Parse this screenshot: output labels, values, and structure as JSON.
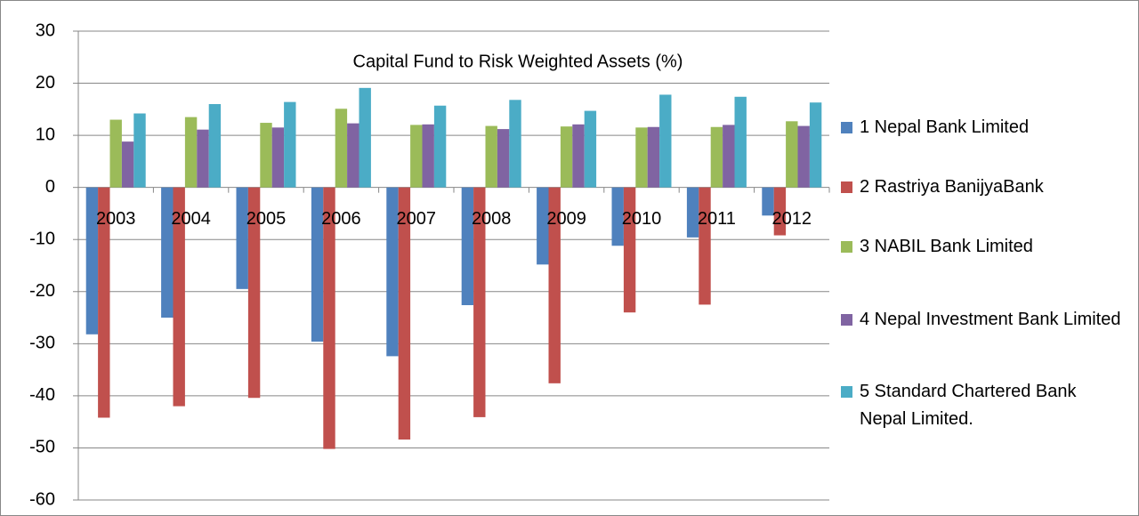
{
  "chart_data": {
    "type": "bar",
    "title": "Capital Fund to Risk Weighted Assets (%)",
    "categories": [
      "2003",
      "2004",
      "2005",
      "2006",
      "2007",
      "2008",
      "2009",
      "2010",
      "2011",
      "2012"
    ],
    "series": [
      {
        "name": "1 Nepal Bank Limited",
        "color": "#4f81bd",
        "values": [
          -28.2,
          -25,
          -19.5,
          -29.6,
          -32.4,
          -22.6,
          -14.8,
          -11.2,
          -9.6,
          -5.4
        ]
      },
      {
        "name": "2 Rastriya BanijyaBank",
        "color": "#c0504d",
        "values": [
          -44.2,
          -42,
          -40.4,
          -50.2,
          -48.4,
          -44.1,
          -37.6,
          -24,
          -22.5,
          -9.2
        ]
      },
      {
        "name": "3 NABIL Bank Limited",
        "color": "#9bbb59",
        "values": [
          13,
          13.5,
          12.4,
          15.1,
          12,
          11.8,
          11.7,
          11.5,
          11.6,
          12.7
        ]
      },
      {
        "name": "4 Nepal Investment Bank Limited",
        "color": "#8064a2",
        "values": [
          8.8,
          11.1,
          11.5,
          12.3,
          12.1,
          11.2,
          12.1,
          11.6,
          12,
          11.8
        ]
      },
      {
        "name": "5 Standard Chartered Bank Nepal Limited.",
        "color": "#4bacc6",
        "values": [
          14.2,
          16,
          16.4,
          19.1,
          15.7,
          16.8,
          14.7,
          17.8,
          17.4,
          16.3
        ]
      }
    ],
    "ylim": [
      -60,
      30
    ],
    "yticks": [
      -60,
      -50,
      -40,
      -30,
      -20,
      -10,
      0,
      10,
      20,
      30
    ],
    "grid": true,
    "legend": "right"
  }
}
